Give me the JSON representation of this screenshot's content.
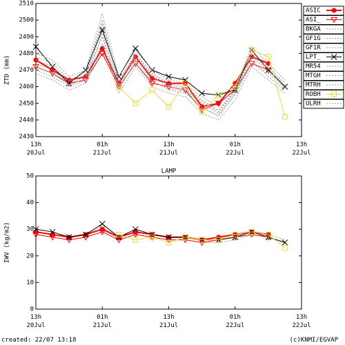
{
  "chart_data": [
    {
      "type": "line",
      "ylabel": "ZTD (mm)",
      "x": [
        0,
        3,
        6,
        9,
        12,
        15,
        18,
        21,
        24,
        27,
        30,
        33,
        36,
        39,
        42,
        45
      ],
      "xlim": [
        0,
        48
      ],
      "xticks": [
        {
          "value": 0,
          "label": "13h 20Jul"
        },
        {
          "value": 12,
          "label": "01h 21Jul"
        },
        {
          "value": 24,
          "label": "13h 21Jul"
        },
        {
          "value": 36,
          "label": "01h 22Jul"
        },
        {
          "value": 48,
          "label": "13h 22Jul"
        }
      ],
      "ylim": [
        2430,
        2510
      ],
      "yticks": [
        2430,
        2440,
        2450,
        2460,
        2470,
        2480,
        2490,
        2500,
        2510
      ],
      "legend": "right",
      "series": [
        {
          "name": "ASIC",
          "color": "#ff0000",
          "marker": "circle",
          "values": [
            2476,
            2470,
            2464,
            2466,
            2483,
            2462,
            2478,
            2465,
            2462,
            2462,
            2448,
            2450,
            2462,
            2478,
            2474,
            null
          ]
        },
        {
          "name": "ASI_",
          "color": "#ff0000",
          "marker": "triangle",
          "values": [
            2472,
            2468,
            2462,
            2464,
            2480,
            2460,
            2474,
            2462,
            2460,
            2458,
            2446,
            2450,
            2458,
            2474,
            2470,
            null
          ]
        },
        {
          "name": "BKGA",
          "color": "#999999",
          "marker": "dash",
          "values": [
            2470,
            2466,
            2460,
            2464,
            2490,
            2458,
            2476,
            2464,
            2458,
            2456,
            2448,
            2442,
            2456,
            2476,
            2466,
            2458
          ]
        },
        {
          "name": "GF1G",
          "color": "#999999",
          "marker": "dash",
          "values": [
            2478,
            2474,
            2464,
            2468,
            2500,
            2464,
            2480,
            2468,
            2462,
            2460,
            2452,
            2446,
            2458,
            2480,
            2472,
            2462
          ]
        },
        {
          "name": "GF1R",
          "color": "#999999",
          "marker": "dash",
          "values": [
            2474,
            2470,
            2462,
            2466,
            2496,
            2462,
            2478,
            2466,
            2460,
            2458,
            2450,
            2444,
            2457,
            2478,
            2470,
            2460
          ]
        },
        {
          "name": "LPT_",
          "color": "#000000",
          "marker": "x",
          "values": [
            2484,
            2472,
            2462,
            2470,
            2494,
            2466,
            2483,
            2470,
            2466,
            2464,
            2456,
            2455,
            2458,
            2482,
            2470,
            2460
          ]
        },
        {
          "name": "MR54",
          "color": "#999999",
          "marker": "dash",
          "values": [
            2468,
            2464,
            2458,
            2462,
            2486,
            2456,
            2472,
            2460,
            2456,
            2454,
            2444,
            2440,
            2452,
            2472,
            2464,
            2456
          ]
        },
        {
          "name": "MTGH",
          "color": "#999999",
          "marker": "dash",
          "values": [
            2480,
            2476,
            2466,
            2470,
            2504,
            2466,
            2482,
            2470,
            2464,
            2462,
            2454,
            2448,
            2460,
            2484,
            2474,
            2464
          ]
        },
        {
          "name": "MTRH",
          "color": "#999999",
          "marker": "dash",
          "values": [
            2472,
            2468,
            2461,
            2465,
            2492,
            2460,
            2474,
            2463,
            2459,
            2457,
            2447,
            2443,
            2455,
            2474,
            2468,
            2459
          ]
        },
        {
          "name": "ROBH",
          "color": "#e8d84a",
          "marker": "square",
          "values": [
            null,
            null,
            null,
            null,
            null,
            2460,
            2450,
            2458,
            2448,
            2462,
            2445,
            2455,
            2460,
            2482,
            2478,
            2442
          ]
        },
        {
          "name": "ULRH",
          "color": "#999999",
          "marker": "dash",
          "values": [
            2476,
            2472,
            2463,
            2467,
            2498,
            2463,
            2479,
            2467,
            2461,
            2459,
            2451,
            2445,
            2458,
            2479,
            2471,
            2461
          ]
        }
      ]
    },
    {
      "type": "line",
      "title": "LAMP",
      "ylabel": "IWV (kg/m2)",
      "x": [
        0,
        3,
        6,
        9,
        12,
        15,
        18,
        21,
        24,
        27,
        30,
        33,
        36,
        39,
        42,
        45
      ],
      "xlim": [
        0,
        48
      ],
      "xticks": [
        {
          "value": 0,
          "label": "13h 20Jul"
        },
        {
          "value": 12,
          "label": "01h 21Jul"
        },
        {
          "value": 24,
          "label": "13h 21Jul"
        },
        {
          "value": 36,
          "label": "01h 22Jul"
        },
        {
          "value": 48,
          "label": "13h 22Jul"
        }
      ],
      "ylim": [
        0,
        50
      ],
      "yticks": [
        0,
        10,
        20,
        30,
        40,
        50
      ],
      "series": [
        {
          "color": "#999999",
          "marker": "dash",
          "values": [
            28,
            27,
            26,
            27,
            29,
            26,
            28,
            27,
            26,
            26,
            25,
            25,
            26,
            28,
            27,
            25
          ]
        },
        {
          "color": "#999999",
          "marker": "dash",
          "values": [
            30,
            29,
            27,
            28,
            31,
            27,
            29,
            28,
            27,
            27,
            26,
            26,
            27,
            29,
            28,
            26
          ]
        },
        {
          "color": "#ff0000",
          "marker": "triangle",
          "values": [
            28,
            27,
            26,
            27,
            29,
            26,
            28,
            27,
            26,
            26,
            25,
            26,
            27,
            28,
            27,
            null
          ]
        },
        {
          "color": "#ff0000",
          "marker": "circle",
          "values": [
            29,
            28,
            27,
            28,
            30,
            27,
            29,
            28,
            27,
            27,
            26,
            27,
            28,
            29,
            28,
            null
          ]
        },
        {
          "color": "#000000",
          "marker": "x",
          "values": [
            30,
            29,
            27,
            28,
            32,
            27,
            30,
            28,
            27,
            27,
            26,
            26,
            27,
            29,
            27,
            25
          ]
        },
        {
          "color": "#e8d84a",
          "marker": "square",
          "values": [
            null,
            null,
            null,
            null,
            null,
            28,
            26,
            27,
            25,
            27,
            26,
            26,
            28,
            29,
            28,
            23
          ]
        }
      ]
    }
  ],
  "footer": {
    "created": "created: 22/07 13:18",
    "credit": "(c)KNMI/EGVAP"
  }
}
